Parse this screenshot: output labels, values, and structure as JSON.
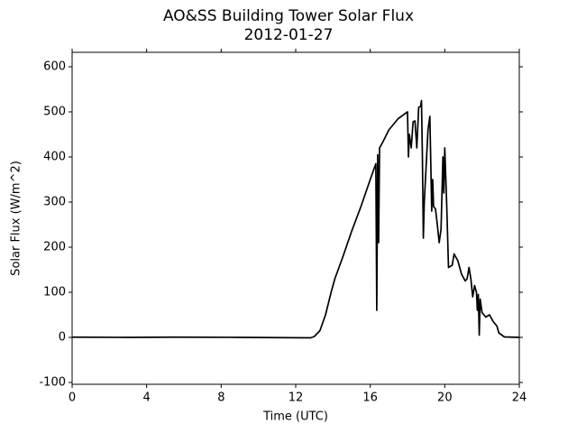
{
  "chart_data": {
    "type": "line",
    "title": "AO&SS Building Tower Solar Flux",
    "subtitle": "2012-01-27",
    "x_label": "Time (UTC)",
    "y_label": "Solar Flux (W/m^2)",
    "xlim": [
      0,
      24
    ],
    "xticks": [
      0,
      4,
      8,
      12,
      16,
      20,
      24
    ],
    "ylim": [
      -104,
      632
    ],
    "yticks": [
      -100,
      0,
      100,
      200,
      300,
      400,
      500,
      600
    ],
    "grid": false,
    "series": [
      {
        "color": "#000000",
        "x": [
          0,
          3,
          5.5,
          9,
          12.8,
          13,
          13.3,
          13.6,
          13.9,
          14.1,
          14.5,
          15,
          15.5,
          16,
          16.3,
          16.35,
          16.4,
          16.45,
          16.5,
          16.7,
          17,
          17.5,
          18,
          18.05,
          18.1,
          18.2,
          18.3,
          18.4,
          18.5,
          18.6,
          18.7,
          18.75,
          18.8,
          18.85,
          18.9,
          19.0,
          19.1,
          19.2,
          19.3,
          19.35,
          19.4,
          19.5,
          19.6,
          19.7,
          19.8,
          19.9,
          19.95,
          20.0,
          20.1,
          20.2,
          20.4,
          20.5,
          20.7,
          20.9,
          21.1,
          21.2,
          21.3,
          21.4,
          21.5,
          21.6,
          21.7,
          21.75,
          21.8,
          21.85,
          21.9,
          22.0,
          22.2,
          22.4,
          22.6,
          22.8,
          22.9,
          23.2,
          24
        ],
        "values": [
          0.5,
          0,
          0.5,
          0,
          -1,
          2,
          15,
          50,
          100,
          130,
          175,
          235,
          290,
          350,
          385,
          60,
          405,
          210,
          420,
          435,
          460,
          485,
          500,
          400,
          450,
          420,
          478,
          480,
          420,
          510,
          512,
          525,
          400,
          220,
          300,
          380,
          460,
          490,
          280,
          350,
          290,
          285,
          250,
          210,
          240,
          400,
          320,
          420,
          300,
          155,
          160,
          185,
          170,
          140,
          125,
          130,
          155,
          130,
          90,
          115,
          100,
          60,
          95,
          5,
          85,
          55,
          45,
          50,
          35,
          25,
          10,
          1,
          0
        ]
      }
    ]
  }
}
